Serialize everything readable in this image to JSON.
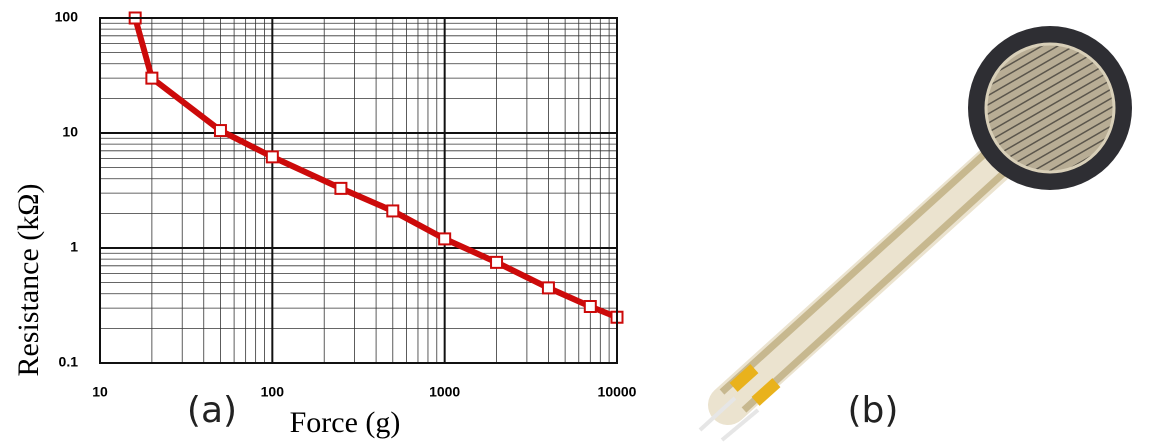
{
  "chart_data": {
    "type": "line",
    "x_label": "Force (g)",
    "y_label": "Resistance (kΩ)",
    "x": [
      16,
      20,
      50,
      100,
      250,
      500,
      1000,
      2000,
      4000,
      7000,
      10000
    ],
    "series": [
      {
        "color": "#cc0a0a",
        "values": [
          100,
          30,
          10.5,
          6.2,
          3.3,
          2.1,
          1.2,
          0.75,
          0.45,
          0.31,
          0.25
        ]
      }
    ],
    "xscale": "log",
    "yscale": "log",
    "xlim": [
      10,
      10000
    ],
    "ylim": [
      0.1,
      100
    ],
    "xticks": [
      10,
      100,
      1000,
      10000
    ],
    "yticks": [
      0.1,
      1,
      10,
      100
    ],
    "grid": true,
    "minor_grid": true
  },
  "panels": {
    "a": "(a)",
    "b": "(b)"
  }
}
